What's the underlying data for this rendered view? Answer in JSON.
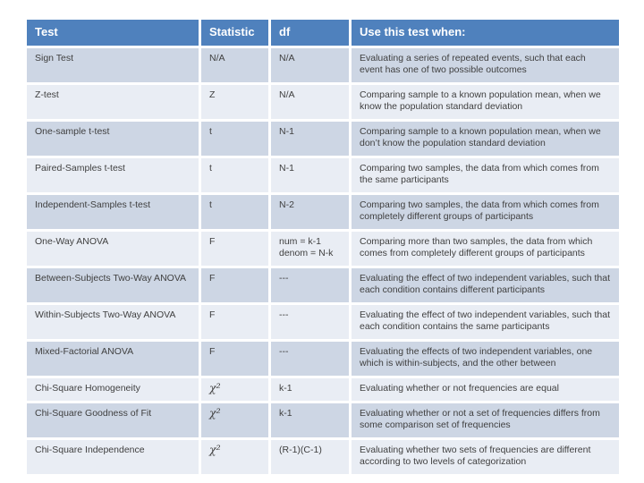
{
  "slide": {
    "background": "#ffffff"
  },
  "colors": {
    "header_bg": "#4f81bd",
    "header_text": "#ffffff",
    "band_dark": "#cdd6e4",
    "band_light": "#e9edf4",
    "body_text": "#3f3f3f",
    "separator": "#ffffff"
  },
  "table": {
    "columns": [
      {
        "key": "test",
        "label": "Test"
      },
      {
        "key": "statistic",
        "label": "Statistic"
      },
      {
        "key": "df",
        "label": "df"
      },
      {
        "key": "when",
        "label": "Use this test when:"
      }
    ],
    "rows": [
      {
        "test": "Sign Test",
        "statistic": "N/A",
        "df": "N/A",
        "when": "Evaluating a series of repeated events, such that each event has one of two possible outcomes"
      },
      {
        "test": "Z-test",
        "statistic": "Z",
        "df": "N/A",
        "when": "Comparing sample to a known population mean, when we know the population standard deviation"
      },
      {
        "test": "One-sample t-test",
        "statistic": "t",
        "df": "N-1",
        "when": "Comparing sample to a known population mean, when we don’t know the population standard deviation"
      },
      {
        "test": "Paired-Samples t-test",
        "statistic": "t",
        "df": "N-1",
        "when": "Comparing two samples, the data from which comes from the same participants"
      },
      {
        "test": "Independent-Samples t-test",
        "statistic": "t",
        "df": "N-2",
        "when": "Comparing two samples, the data from which comes from completely different groups of participants"
      },
      {
        "test": "One-Way ANOVA",
        "statistic": "F",
        "df": "num = k-1\ndenom = N-k",
        "when": "Comparing more than two samples, the data from which comes from completely different groups of participants"
      },
      {
        "test": "Between-Subjects Two-Way ANOVA",
        "statistic": "F",
        "df": "---",
        "when": "Evaluating the effect of two independent variables, such that each condition contains different participants"
      },
      {
        "test": "Within-Subjects Two-Way ANOVA",
        "statistic": "F",
        "df": "---",
        "when": "Evaluating the effect of two independent variables, such that each condition contains the same participants"
      },
      {
        "test": "Mixed-Factorial ANOVA",
        "statistic": "F",
        "df": "---",
        "when": "Evaluating the effects of two independent variables, one which is within-subjects, and the other between"
      },
      {
        "test": "Chi-Square Homogeneity",
        "statistic": "χ²",
        "df": "k-1",
        "when": "Evaluating whether or not frequencies are equal"
      },
      {
        "test": "Chi-Square Goodness of Fit",
        "statistic": "χ²",
        "df": "k-1",
        "when": "Evaluating whether or not a set of frequencies differs from some comparison set of frequencies"
      },
      {
        "test": "Chi-Square Independence",
        "statistic": "χ²",
        "df": "(R-1)(C-1)",
        "when": "Evaluating whether two sets of frequencies are different according to two levels of categorization"
      }
    ]
  }
}
